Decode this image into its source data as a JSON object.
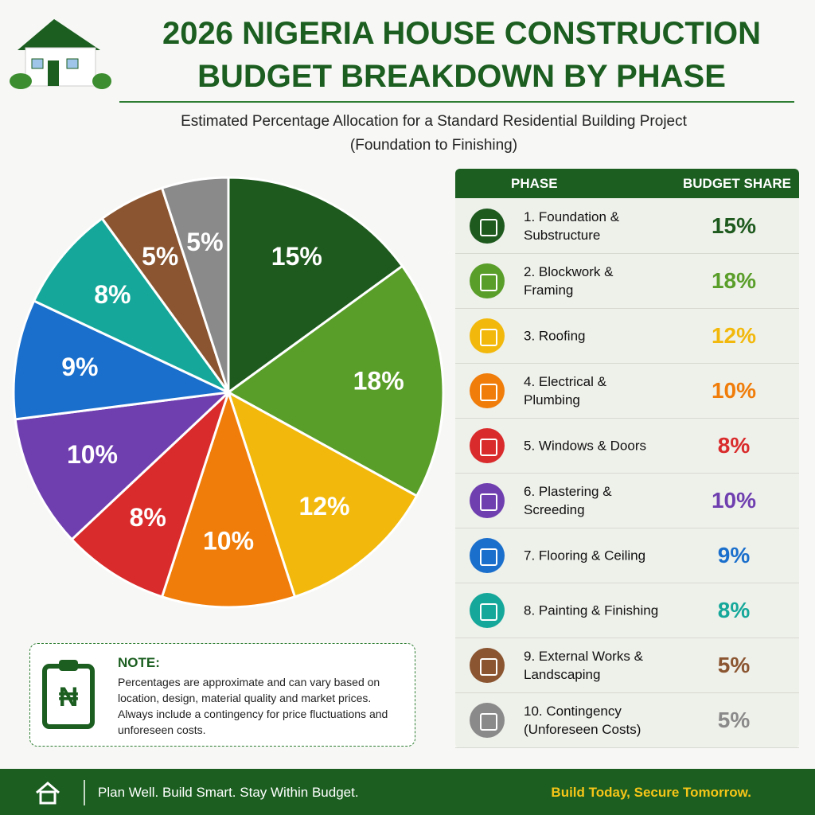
{
  "chart_data": {
    "type": "pie",
    "title": [
      "2026 NIGERIA HOUSE CONSTRUCTION",
      "BUDGET BREAKDOWN BY PHASE"
    ],
    "subtitle": [
      "Estimated Percentage Allocation for a Standard Residential Building Project",
      "(Foundation to Finishing)"
    ],
    "categories": [
      "1. Foundation & Substructure",
      "2. Blockwork & Framing",
      "3. Roofing",
      "4. Electrical & Plumbing",
      "5. Windows & Doors",
      "6. Plastering & Screeding",
      "7. Flooring & Ceiling",
      "8. Painting & Finishing",
      "9. External Works & Landscaping",
      "10. Contingency (Unforeseen Costs)"
    ],
    "values": [
      15,
      18,
      12,
      10,
      8,
      10,
      9,
      8,
      5,
      5
    ],
    "value_labels": [
      "15%",
      "18%",
      "12%",
      "10%",
      "8%",
      "10%",
      "9%",
      "8%",
      "5%",
      "5%"
    ],
    "colors": [
      "#1e5a1e",
      "#5a9e2a",
      "#f2b90c",
      "#f07d0a",
      "#d92b2b",
      "#6f3fb0",
      "#1a6fcc",
      "#15a89a",
      "#8a5530",
      "#8a8a8a"
    ],
    "table_headers": [
      "PHASE",
      "BUDGET SHARE"
    ],
    "note": {
      "title": "NOTE:",
      "text": "Percentages are approximate and can vary based on location, design, material quality and market prices. Always include a contingency for price fluctuations and unforeseen costs."
    },
    "footer": [
      "Plan Well. Build Smart. Stay Within Budget.",
      "Build Today, Secure Tomorrow."
    ]
  }
}
